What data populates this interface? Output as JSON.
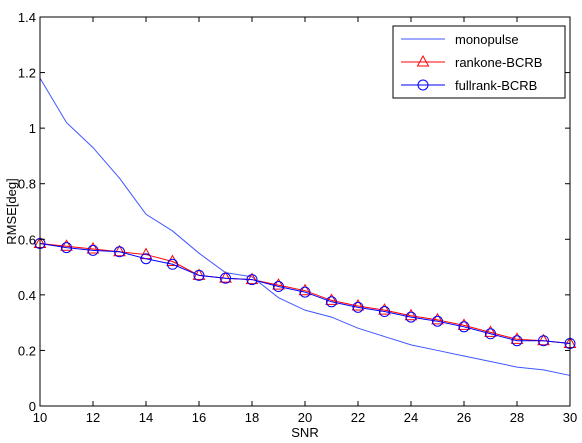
{
  "chart_data": {
    "type": "line",
    "title": "",
    "xlabel": "SNR",
    "ylabel": "RMSE[deg]",
    "xlim": [
      10,
      30
    ],
    "ylim": [
      0,
      1.4
    ],
    "x": [
      10,
      11,
      12,
      13,
      14,
      15,
      16,
      17,
      18,
      19,
      20,
      21,
      22,
      23,
      24,
      25,
      26,
      27,
      28,
      29,
      30
    ],
    "xticks": [
      "10",
      "12",
      "14",
      "16",
      "18",
      "20",
      "22",
      "24",
      "26",
      "28",
      "30"
    ],
    "yticks": [
      "0",
      "0.2",
      "0.4",
      "0.6",
      "0.8",
      "1",
      "1.2",
      "1.4"
    ],
    "grid": false,
    "legend_position": "top-right",
    "series": [
      {
        "name": "monopulse",
        "color": "#3f56ff",
        "marker": "none",
        "values": [
          1.18,
          1.02,
          0.93,
          0.82,
          0.69,
          0.63,
          0.55,
          0.48,
          0.465,
          0.39,
          0.345,
          0.32,
          0.28,
          0.25,
          0.22,
          0.2,
          0.18,
          0.16,
          0.14,
          0.13,
          0.11
        ]
      },
      {
        "name": "rankone-BCRB",
        "color": "#ff0000",
        "marker": "triangle",
        "values": [
          0.585,
          0.575,
          0.565,
          0.555,
          0.545,
          0.52,
          0.47,
          0.46,
          0.455,
          0.435,
          0.415,
          0.38,
          0.36,
          0.345,
          0.325,
          0.31,
          0.29,
          0.265,
          0.24,
          0.235,
          0.225
        ]
      },
      {
        "name": "fullrank-BCRB",
        "color": "#0000ff",
        "marker": "circle",
        "values": [
          0.585,
          0.57,
          0.56,
          0.555,
          0.53,
          0.51,
          0.47,
          0.46,
          0.455,
          0.43,
          0.41,
          0.375,
          0.355,
          0.34,
          0.32,
          0.305,
          0.285,
          0.26,
          0.235,
          0.235,
          0.225
        ]
      }
    ]
  }
}
